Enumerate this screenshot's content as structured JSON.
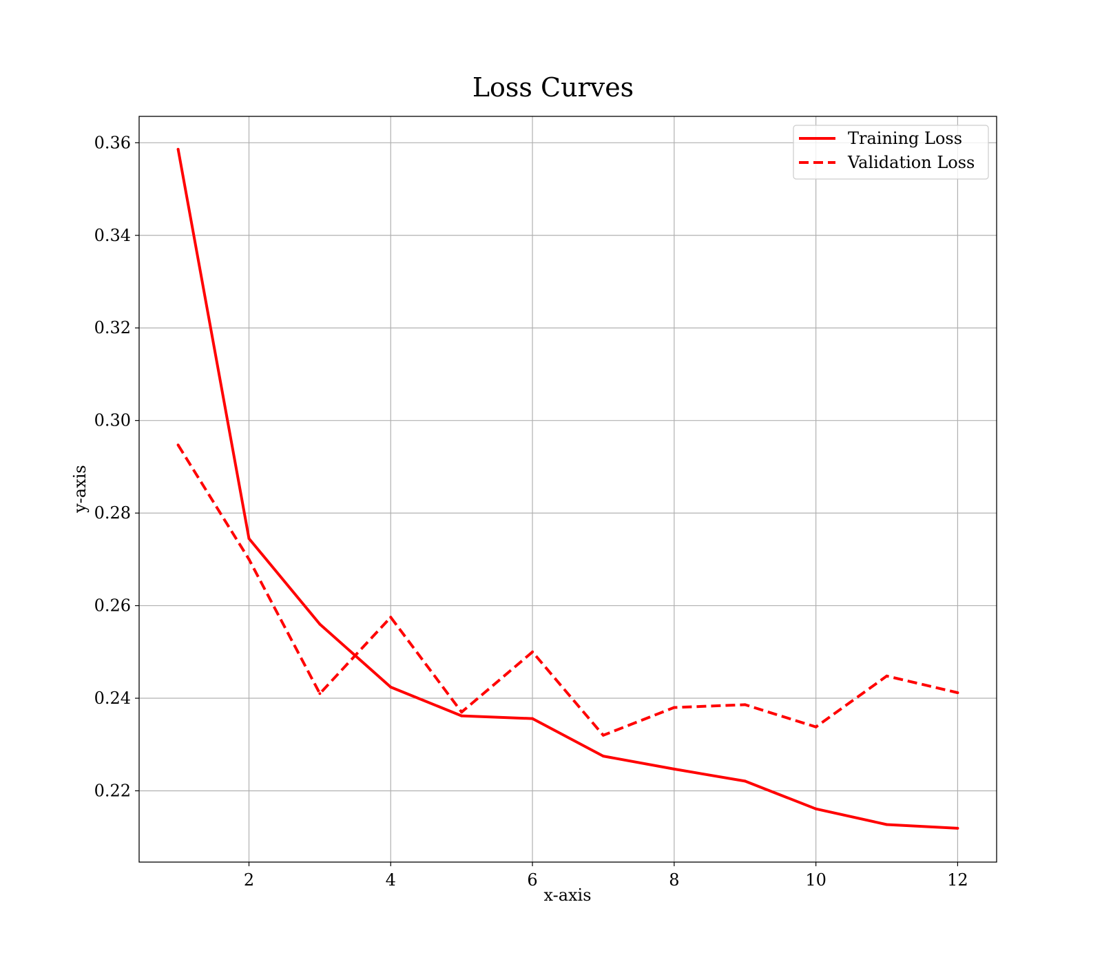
{
  "chart_data": {
    "type": "line",
    "title": "Loss Curves",
    "xlabel": "x-axis",
    "ylabel": "y-axis",
    "xlim": [
      0.45,
      12.55
    ],
    "ylim": [
      0.2046,
      0.3657
    ],
    "xticks": [
      2,
      4,
      6,
      8,
      10,
      12
    ],
    "xtick_labels": [
      "2",
      "4",
      "6",
      "8",
      "10",
      "12"
    ],
    "yticks": [
      0.22,
      0.24,
      0.26,
      0.28,
      0.3,
      0.32,
      0.34,
      0.36
    ],
    "ytick_labels": [
      "0.22",
      "0.24",
      "0.26",
      "0.28",
      "0.30",
      "0.32",
      "0.34",
      "0.36"
    ],
    "grid": true,
    "legend_position": "top-right",
    "x": [
      1,
      2,
      3,
      4,
      5,
      6,
      7,
      8,
      9,
      10,
      11,
      12
    ],
    "series": [
      {
        "name": "Training Loss",
        "color": "#ff0000",
        "style": "solid",
        "values": [
          0.3586,
          0.2745,
          0.256,
          0.2424,
          0.2362,
          0.2356,
          0.2275,
          0.2247,
          0.2221,
          0.2161,
          0.2127,
          0.2119
        ]
      },
      {
        "name": "Validation Loss",
        "color": "#ff0000",
        "style": "dashed",
        "values": [
          0.2947,
          0.27,
          0.241,
          0.2575,
          0.237,
          0.25,
          0.232,
          0.238,
          0.2386,
          0.2338,
          0.2448,
          0.2412
        ]
      }
    ]
  }
}
